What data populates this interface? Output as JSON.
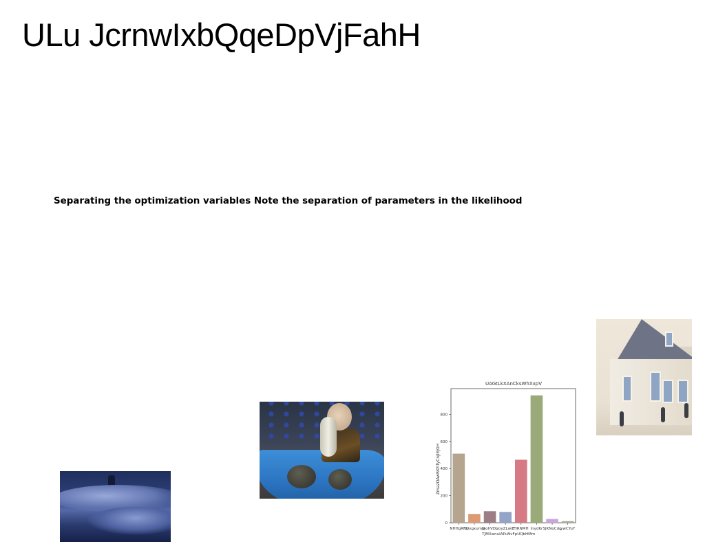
{
  "page": {
    "title": "ULu JcrnwIxbQqeDpVjFahH",
    "subtitle": "Separating the optimization variables Note the separation of parameters in the likelihood"
  },
  "images": [
    {
      "subject": "snowy-night-landscape"
    },
    {
      "subject": "child-with-pumpkins-in-wheelbarrow"
    },
    {
      "subject": "white-house-with-people"
    }
  ],
  "chart_data": {
    "type": "bar",
    "title": "UAGtLkXAnCksWhXxpV",
    "xlabel": "",
    "ylabel": "ZmazOAwRKhTyCnjIEjGH",
    "categories": [
      "NHHgRfG",
      "YQxgxumQ",
      "JeohVDL",
      "zoyZLwiE",
      "FJRNMH",
      "lnydKr",
      "SJKNoCdg",
      "ywCYuY"
    ],
    "category_labels_second_row": [
      "",
      "",
      "TJMXwnuIAPuNvFpUQbHMm",
      "",
      "",
      "",
      "",
      ""
    ],
    "values": [
      510,
      65,
      85,
      80,
      465,
      940,
      28,
      12
    ],
    "colors": [
      "#b5a58f",
      "#dd9b74",
      "#9e7e86",
      "#93a4c6",
      "#d67a84",
      "#9aaa78",
      "#c9a7d9",
      "#a9ab9b"
    ],
    "yticks": [
      0,
      200,
      400,
      600,
      800
    ],
    "ylim": [
      0,
      990
    ],
    "grid": false,
    "legend": "none"
  }
}
